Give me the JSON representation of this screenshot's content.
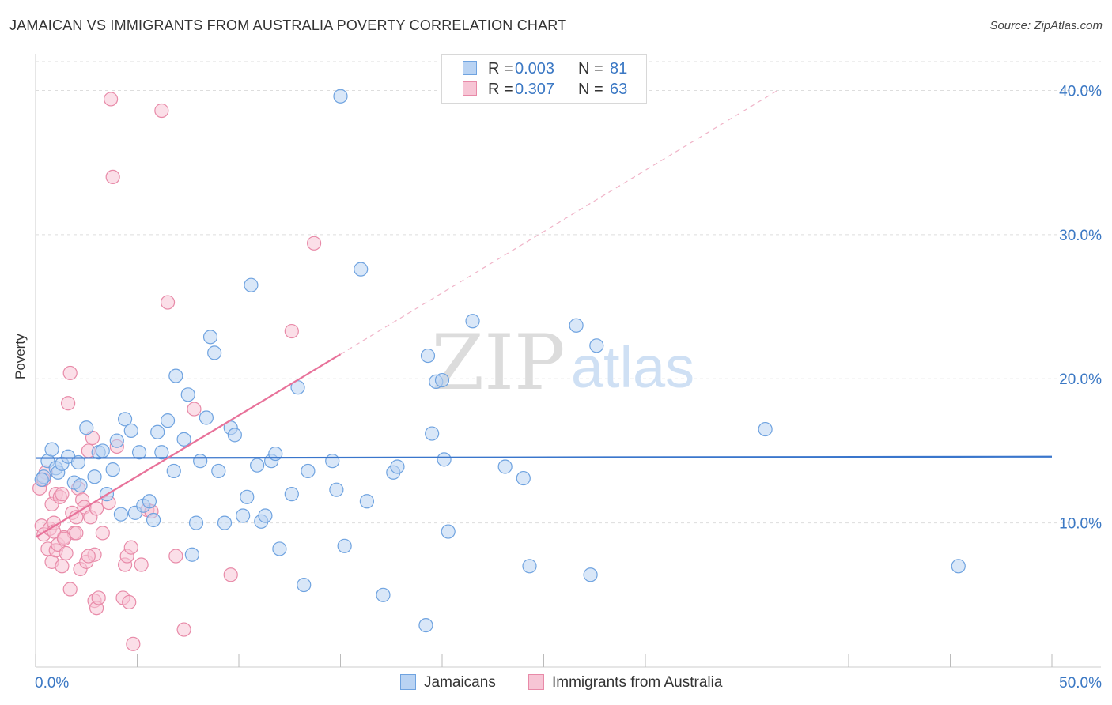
{
  "title": "JAMAICAN VS IMMIGRANTS FROM AUSTRALIA POVERTY CORRELATION CHART",
  "source": "Source: ZipAtlas.com",
  "watermark": {
    "zip": "ZIP",
    "atlas": "atlas"
  },
  "legend": {
    "r_label": "R =",
    "n_label": "N =",
    "rows": [
      {
        "name": "Jamaicans",
        "r": "0.003",
        "n": "81",
        "color": "#6fa3e0",
        "fill": "#b9d3f3"
      },
      {
        "name": "Immigrants from Australia",
        "r": "0.307",
        "n": "63",
        "color": "#e88aa8",
        "fill": "#f7c5d5"
      }
    ]
  },
  "colors": {
    "blue_line": "#3a76cc",
    "pink_line": "#e8729a",
    "axis_text": "#3b78c4",
    "grid": "#dddddd"
  },
  "chart_data": {
    "type": "scatter",
    "title": "JAMAICAN VS IMMIGRANTS FROM AUSTRALIA POVERTY CORRELATION CHART",
    "xlabel": "",
    "ylabel": "Poverty",
    "xlim": [
      0,
      50
    ],
    "ylim": [
      0,
      42
    ],
    "x_tick_labels": {
      "min": "0.0%",
      "max": "50.0%"
    },
    "y_ticks": [
      10,
      20,
      30,
      40
    ],
    "y_tick_labels": [
      "10.0%",
      "20.0%",
      "30.0%",
      "40.0%"
    ],
    "series": [
      {
        "name": "Jamaicans",
        "r": 0.003,
        "n": 81,
        "trend": {
          "x": [
            0,
            50
          ],
          "y": [
            14.5,
            14.6
          ]
        },
        "points": [
          [
            0.4,
            13.2
          ],
          [
            0.6,
            14.3
          ],
          [
            0.8,
            15.1
          ],
          [
            1.0,
            13.8
          ],
          [
            1.1,
            13.5
          ],
          [
            1.3,
            14.1
          ],
          [
            1.6,
            14.6
          ],
          [
            1.9,
            12.8
          ],
          [
            2.1,
            14.2
          ],
          [
            2.5,
            16.6
          ],
          [
            2.9,
            13.2
          ],
          [
            3.1,
            14.9
          ],
          [
            3.3,
            15.0
          ],
          [
            3.5,
            12.0
          ],
          [
            3.8,
            13.7
          ],
          [
            4.0,
            15.7
          ],
          [
            4.2,
            10.6
          ],
          [
            4.4,
            17.2
          ],
          [
            4.7,
            16.4
          ],
          [
            4.9,
            10.7
          ],
          [
            5.1,
            14.9
          ],
          [
            5.3,
            11.2
          ],
          [
            5.6,
            11.5
          ],
          [
            5.8,
            10.2
          ],
          [
            6.0,
            16.3
          ],
          [
            6.2,
            14.9
          ],
          [
            6.5,
            17.1
          ],
          [
            6.8,
            13.6
          ],
          [
            6.9,
            20.2
          ],
          [
            7.3,
            15.8
          ],
          [
            7.5,
            18.9
          ],
          [
            7.7,
            7.8
          ],
          [
            7.9,
            10.0
          ],
          [
            8.1,
            14.3
          ],
          [
            8.4,
            17.3
          ],
          [
            8.6,
            22.9
          ],
          [
            8.8,
            21.8
          ],
          [
            9.0,
            13.6
          ],
          [
            9.3,
            10.0
          ],
          [
            9.6,
            16.6
          ],
          [
            9.8,
            16.1
          ],
          [
            10.2,
            10.5
          ],
          [
            10.4,
            11.8
          ],
          [
            10.6,
            26.5
          ],
          [
            10.9,
            14.0
          ],
          [
            11.1,
            10.1
          ],
          [
            11.3,
            10.5
          ],
          [
            11.6,
            14.3
          ],
          [
            11.8,
            14.8
          ],
          [
            12.0,
            8.2
          ],
          [
            12.6,
            12.0
          ],
          [
            12.9,
            19.4
          ],
          [
            13.2,
            5.7
          ],
          [
            13.4,
            13.6
          ],
          [
            14.6,
            14.3
          ],
          [
            14.8,
            12.3
          ],
          [
            15.0,
            39.6
          ],
          [
            15.2,
            8.4
          ],
          [
            16.0,
            27.6
          ],
          [
            16.3,
            11.5
          ],
          [
            17.1,
            5.0
          ],
          [
            17.6,
            13.5
          ],
          [
            17.8,
            13.9
          ],
          [
            19.2,
            2.9
          ],
          [
            19.3,
            21.6
          ],
          [
            19.5,
            16.2
          ],
          [
            19.7,
            19.8
          ],
          [
            20.0,
            19.9
          ],
          [
            20.1,
            14.4
          ],
          [
            20.3,
            9.4
          ],
          [
            21.5,
            24.0
          ],
          [
            23.1,
            13.9
          ],
          [
            24.0,
            13.1
          ],
          [
            24.3,
            7.0
          ],
          [
            26.6,
            23.7
          ],
          [
            27.3,
            6.4
          ],
          [
            27.6,
            22.3
          ],
          [
            35.9,
            16.5
          ],
          [
            45.4,
            7.0
          ],
          [
            0.3,
            13.0
          ],
          [
            2.2,
            12.6
          ]
        ]
      },
      {
        "name": "Immigrants from Australia",
        "r": 0.307,
        "n": 63,
        "trend": {
          "x": [
            0,
            15.0
          ],
          "y": [
            9.0,
            21.7
          ]
        },
        "trend_dashed": {
          "x": [
            15.0,
            36.5
          ],
          "y": [
            21.7,
            40.0
          ]
        },
        "points": [
          [
            0.2,
            12.4
          ],
          [
            0.3,
            9.8
          ],
          [
            0.4,
            9.2
          ],
          [
            0.5,
            13.5
          ],
          [
            0.6,
            8.2
          ],
          [
            0.7,
            9.6
          ],
          [
            0.8,
            7.3
          ],
          [
            0.8,
            11.3
          ],
          [
            0.9,
            10.0
          ],
          [
            1.0,
            12.0
          ],
          [
            1.0,
            8.1
          ],
          [
            1.1,
            8.5
          ],
          [
            1.2,
            11.8
          ],
          [
            1.3,
            7.0
          ],
          [
            1.4,
            9.0
          ],
          [
            1.5,
            7.9
          ],
          [
            1.6,
            18.3
          ],
          [
            1.7,
            20.4
          ],
          [
            1.7,
            5.4
          ],
          [
            1.8,
            10.7
          ],
          [
            1.9,
            9.3
          ],
          [
            2.0,
            9.3
          ],
          [
            2.1,
            12.4
          ],
          [
            2.2,
            6.8
          ],
          [
            2.3,
            11.6
          ],
          [
            2.4,
            11.1
          ],
          [
            2.5,
            7.3
          ],
          [
            2.6,
            15.0
          ],
          [
            2.7,
            10.4
          ],
          [
            2.8,
            15.9
          ],
          [
            2.9,
            4.6
          ],
          [
            2.9,
            7.8
          ],
          [
            3.0,
            4.1
          ],
          [
            3.1,
            4.8
          ],
          [
            3.3,
            9.3
          ],
          [
            3.6,
            11.4
          ],
          [
            3.7,
            39.4
          ],
          [
            3.8,
            34.0
          ],
          [
            4.0,
            15.3
          ],
          [
            4.3,
            4.8
          ],
          [
            4.4,
            7.1
          ],
          [
            4.5,
            7.7
          ],
          [
            4.6,
            4.5
          ],
          [
            4.7,
            8.3
          ],
          [
            4.8,
            1.6
          ],
          [
            5.2,
            7.1
          ],
          [
            5.5,
            10.9
          ],
          [
            5.7,
            10.8
          ],
          [
            6.2,
            38.6
          ],
          [
            6.5,
            25.3
          ],
          [
            6.9,
            7.7
          ],
          [
            7.3,
            2.6
          ],
          [
            7.8,
            17.9
          ],
          [
            9.6,
            6.4
          ],
          [
            12.6,
            23.3
          ],
          [
            13.7,
            29.4
          ],
          [
            1.3,
            12.0
          ],
          [
            2.6,
            7.7
          ],
          [
            0.4,
            13.0
          ],
          [
            0.9,
            9.4
          ],
          [
            1.4,
            8.9
          ],
          [
            2.0,
            10.4
          ],
          [
            3.0,
            11.0
          ]
        ]
      }
    ]
  }
}
